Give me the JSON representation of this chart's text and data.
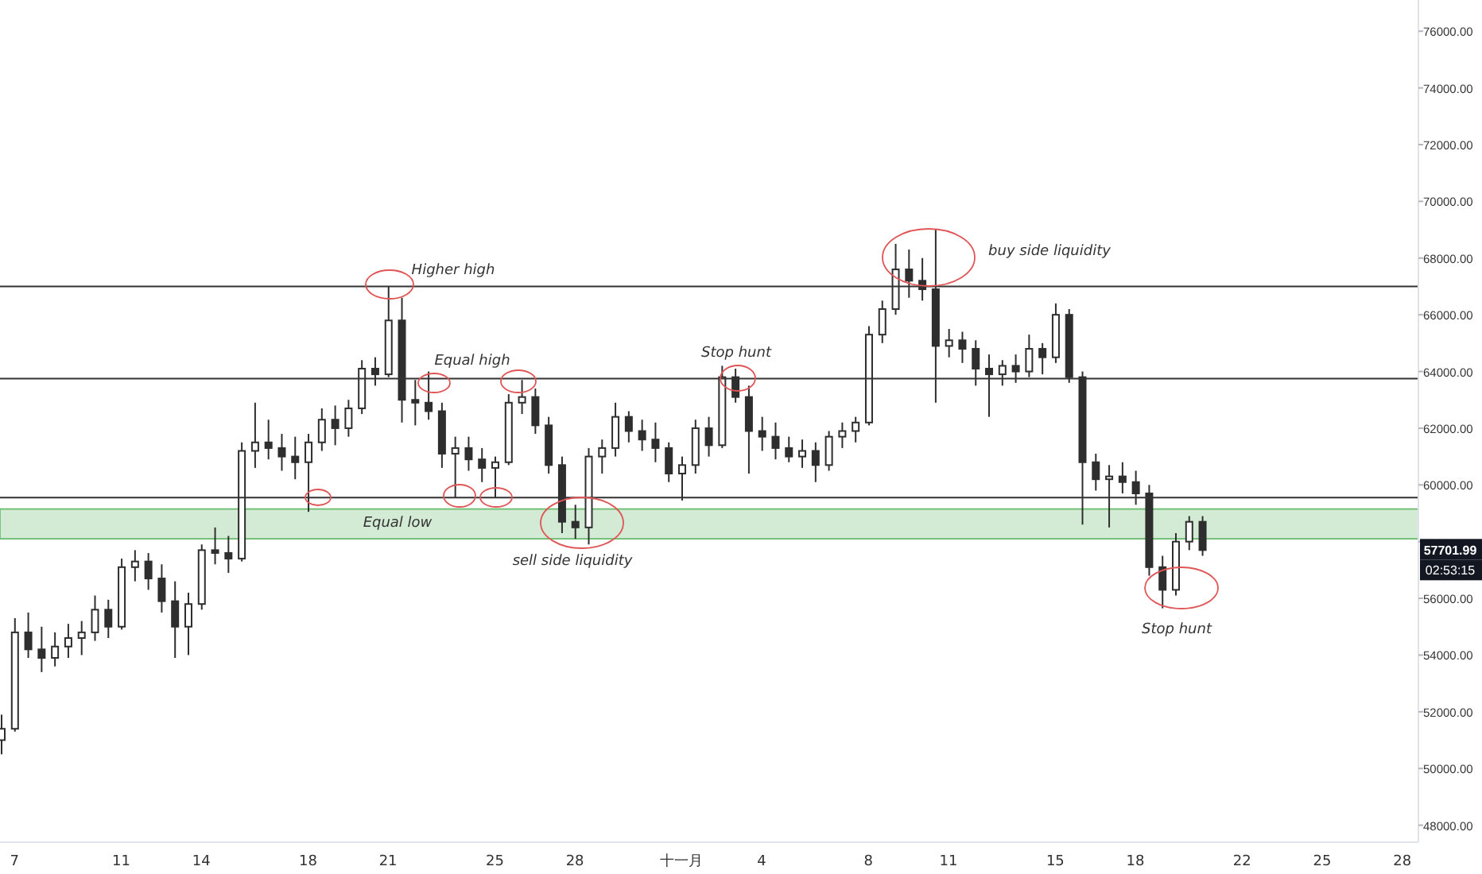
{
  "chart_data": {
    "type": "candlestick",
    "color": "#2e2e2e",
    "xlim": [
      "--10-06T11:00",
      "--11-28T14:30"
    ],
    "xticks": [
      {
        "value": "--10-07",
        "label": "7"
      },
      {
        "value": "--10-11",
        "label": "11"
      },
      {
        "value": "--10-14",
        "label": "14"
      },
      {
        "value": "--10-18",
        "label": "18"
      },
      {
        "value": "--10-21",
        "label": "21"
      },
      {
        "value": "--10-25",
        "label": "25"
      },
      {
        "value": "--10-28",
        "label": "28"
      },
      {
        "value": "--11-01",
        "label": "十一月"
      },
      {
        "value": "--11-04",
        "label": "4"
      },
      {
        "value": "--11-08",
        "label": "8"
      },
      {
        "value": "--11-11",
        "label": "11"
      },
      {
        "value": "--11-15",
        "label": "15"
      },
      {
        "value": "--11-18",
        "label": "18"
      },
      {
        "value": "--11-22",
        "label": "22"
      },
      {
        "value": "--11-25",
        "label": "25"
      },
      {
        "value": "--11-28",
        "label": "28"
      }
    ],
    "ylim": [
      47400,
      77100
    ],
    "yticks": [
      {
        "value": 48000,
        "label": "48000.00"
      },
      {
        "value": 50000,
        "label": "50000.00"
      },
      {
        "value": 52000,
        "label": "52000.00"
      },
      {
        "value": 54000,
        "label": "54000.00"
      },
      {
        "value": 56000,
        "label": "56000.00"
      },
      {
        "value": 58000,
        "label": null
      },
      {
        "value": 60000,
        "label": "60000.00"
      },
      {
        "value": 62000,
        "label": "62000.00"
      },
      {
        "value": 64000,
        "label": "64000.00"
      },
      {
        "value": 66000,
        "label": "66000.00"
      },
      {
        "value": 68000,
        "label": "68000.00"
      },
      {
        "value": 70000,
        "label": "70000.00"
      },
      {
        "value": 72000,
        "label": "72000.00"
      },
      {
        "value": 74000,
        "label": "74000.00"
      },
      {
        "value": 76000,
        "label": "76000.00"
      }
    ],
    "x": [
      "--10-06T12:00",
      "--10-07T00:00",
      "--10-07T12:00",
      "--10-08T00:00",
      "--10-08T12:00",
      "--10-09T00:00",
      "--10-09T12:00",
      "--10-10T00:00",
      "--10-10T12:00",
      "--10-11T00:00",
      "--10-11T12:00",
      "--10-12T00:00",
      "--10-12T12:00",
      "--10-13T00:00",
      "--10-13T12:00",
      "--10-14T00:00",
      "--10-14T12:00",
      "--10-15T00:00",
      "--10-15T12:00",
      "--10-16T00:00",
      "--10-16T12:00",
      "--10-17T00:00",
      "--10-17T12:00",
      "--10-18T00:00",
      "--10-18T12:00",
      "--10-19T00:00",
      "--10-19T12:00",
      "--10-20T00:00",
      "--10-20T12:00",
      "--10-21T00:00",
      "--10-21T12:00",
      "--10-22T00:00",
      "--10-22T12:00",
      "--10-23T00:00",
      "--10-23T12:00",
      "--10-24T00:00",
      "--10-24T12:00",
      "--10-25T00:00",
      "--10-25T12:00",
      "--10-26T00:00",
      "--10-26T12:00",
      "--10-27T00:00",
      "--10-27T12:00",
      "--10-28T00:00",
      "--10-28T12:00",
      "--10-29T00:00",
      "--10-29T12:00",
      "--10-30T00:00",
      "--10-30T12:00",
      "--10-31T00:00",
      "--10-31T12:00",
      "--11-01T00:00",
      "--11-01T12:00",
      "--11-02T00:00",
      "--11-02T12:00",
      "--11-03T00:00",
      "--11-03T12:00",
      "--11-04T00:00",
      "--11-04T12:00",
      "--11-05T00:00",
      "--11-05T12:00",
      "--11-06T00:00",
      "--11-06T12:00",
      "--11-07T00:00",
      "--11-07T12:00",
      "--11-08T00:00",
      "--11-08T12:00",
      "--11-09T00:00",
      "--11-09T12:00",
      "--11-10T00:00",
      "--11-10T12:00",
      "--11-11T00:00",
      "--11-11T12:00",
      "--11-12T00:00",
      "--11-12T12:00",
      "--11-13T00:00",
      "--11-13T12:00",
      "--11-14T00:00",
      "--11-14T12:00",
      "--11-15T00:00",
      "--11-15T12:00",
      "--11-16T00:00",
      "--11-16T12:00",
      "--11-17T00:00",
      "--11-17T12:00",
      "--11-18T00:00",
      "--11-18T12:00",
      "--11-19T00:00",
      "--11-19T12:00",
      "--11-20T00:00",
      "--11-20T12:00"
    ],
    "ohlc": [
      [
        51000,
        51900,
        50500,
        51400
      ],
      [
        51400,
        55300,
        51300,
        54800
      ],
      [
        54800,
        55500,
        53900,
        54200
      ],
      [
        54200,
        55000,
        53400,
        53900
      ],
      [
        53900,
        54800,
        53600,
        54300
      ],
      [
        54300,
        55100,
        53900,
        54600
      ],
      [
        54600,
        55200,
        54000,
        54800
      ],
      [
        54800,
        56100,
        54500,
        55600
      ],
      [
        55600,
        55950,
        54600,
        55000
      ],
      [
        55000,
        57400,
        54900,
        57100
      ],
      [
        57100,
        57700,
        56600,
        57300
      ],
      [
        57300,
        57600,
        56300,
        56700
      ],
      [
        56700,
        57200,
        55500,
        55900
      ],
      [
        55900,
        56600,
        53900,
        55000
      ],
      [
        55000,
        56200,
        54000,
        55800
      ],
      [
        55800,
        57900,
        55600,
        57700
      ],
      [
        57700,
        58500,
        57200,
        57600
      ],
      [
        57600,
        58200,
        56900,
        57400
      ],
      [
        57400,
        61500,
        57300,
        61200
      ],
      [
        61200,
        62900,
        60600,
        61500
      ],
      [
        61500,
        62300,
        60900,
        61300
      ],
      [
        61300,
        61800,
        60500,
        61000
      ],
      [
        61000,
        61700,
        60200,
        60800
      ],
      [
        60800,
        61800,
        59050,
        61500
      ],
      [
        61500,
        62700,
        61200,
        62300
      ],
      [
        62300,
        62800,
        61400,
        62000
      ],
      [
        62000,
        63000,
        61700,
        62700
      ],
      [
        62700,
        64400,
        62500,
        64100
      ],
      [
        64100,
        64500,
        63500,
        63900
      ],
      [
        63900,
        67000,
        63800,
        65800
      ],
      [
        65800,
        66600,
        62200,
        63000
      ],
      [
        63000,
        63700,
        62100,
        62900
      ],
      [
        62900,
        64000,
        62300,
        62600
      ],
      [
        62600,
        62900,
        60600,
        61100
      ],
      [
        61100,
        61700,
        59550,
        61300
      ],
      [
        61300,
        61700,
        60500,
        60900
      ],
      [
        60900,
        61300,
        60100,
        60600
      ],
      [
        60600,
        61000,
        59550,
        60800
      ],
      [
        60800,
        63200,
        60700,
        62900
      ],
      [
        62900,
        63700,
        62500,
        63100
      ],
      [
        63100,
        63400,
        61800,
        62100
      ],
      [
        62100,
        62400,
        60400,
        60700
      ],
      [
        60700,
        61000,
        58300,
        58700
      ],
      [
        58700,
        59300,
        58100,
        58500
      ],
      [
        58500,
        61300,
        57900,
        61000
      ],
      [
        61000,
        61600,
        60400,
        61300
      ],
      [
        61300,
        62900,
        61000,
        62400
      ],
      [
        62400,
        62600,
        61500,
        61900
      ],
      [
        61900,
        62300,
        61200,
        61600
      ],
      [
        61600,
        62200,
        60800,
        61300
      ],
      [
        61300,
        61500,
        60100,
        60400
      ],
      [
        60400,
        61000,
        59450,
        60700
      ],
      [
        60700,
        62300,
        60400,
        62000
      ],
      [
        62000,
        62400,
        61000,
        61400
      ],
      [
        61400,
        64200,
        61300,
        63800
      ],
      [
        63800,
        64100,
        62900,
        63100
      ],
      [
        63100,
        63500,
        60400,
        61900
      ],
      [
        61900,
        62400,
        61200,
        61700
      ],
      [
        61700,
        62200,
        60900,
        61300
      ],
      [
        61300,
        61700,
        60800,
        61000
      ],
      [
        61000,
        61600,
        60600,
        61200
      ],
      [
        61200,
        61500,
        60100,
        60700
      ],
      [
        60700,
        61900,
        60500,
        61700
      ],
      [
        61700,
        62200,
        61300,
        61900
      ],
      [
        61900,
        62400,
        61500,
        62200
      ],
      [
        62200,
        65600,
        62100,
        65300
      ],
      [
        65300,
        66500,
        65000,
        66200
      ],
      [
        66200,
        68500,
        66000,
        67600
      ],
      [
        67600,
        68300,
        66600,
        67200
      ],
      [
        67200,
        68000,
        66500,
        66900
      ],
      [
        66900,
        69000,
        62900,
        64900
      ],
      [
        64900,
        65500,
        64500,
        65100
      ],
      [
        65100,
        65400,
        64300,
        64800
      ],
      [
        64800,
        65100,
        63500,
        64100
      ],
      [
        64100,
        64600,
        62400,
        63900
      ],
      [
        63900,
        64400,
        63500,
        64200
      ],
      [
        64200,
        64600,
        63600,
        64000
      ],
      [
        64000,
        65300,
        63800,
        64800
      ],
      [
        64800,
        65000,
        63900,
        64500
      ],
      [
        64500,
        66400,
        64300,
        66000
      ],
      [
        66000,
        66200,
        63600,
        63800
      ],
      [
        63800,
        64000,
        58600,
        60800
      ],
      [
        60800,
        61100,
        59800,
        60200
      ],
      [
        60200,
        60700,
        58500,
        60300
      ],
      [
        60300,
        60800,
        59700,
        60100
      ],
      [
        60100,
        60500,
        59300,
        59700
      ],
      [
        59700,
        60000,
        56800,
        57100
      ],
      [
        57100,
        57500,
        55650,
        56300
      ],
      [
        56300,
        58300,
        56100,
        58000
      ],
      [
        58000,
        58900,
        57700,
        58700
      ],
      [
        58700,
        58900,
        57500,
        57701.99
      ]
    ],
    "ref_lines": [
      {
        "axis": "y",
        "value": 67000,
        "color": "#333333"
      },
      {
        "axis": "y",
        "value": 63750,
        "color": "#333333"
      },
      {
        "axis": "y",
        "value": 59550,
        "color": "#333333"
      }
    ],
    "bands": [
      {
        "axis": "y",
        "from": 58100,
        "to": 59150,
        "color": "#c8e6c9"
      }
    ],
    "annotations": [
      "Higher high",
      "Equal high",
      "Stop hunt",
      "buy side liquidity",
      "Equal low",
      "sell side liquidity",
      "Stop hunt",
      {
        "text": "57701.99",
        "y": 57701.99
      },
      "02:53:15"
    ]
  }
}
